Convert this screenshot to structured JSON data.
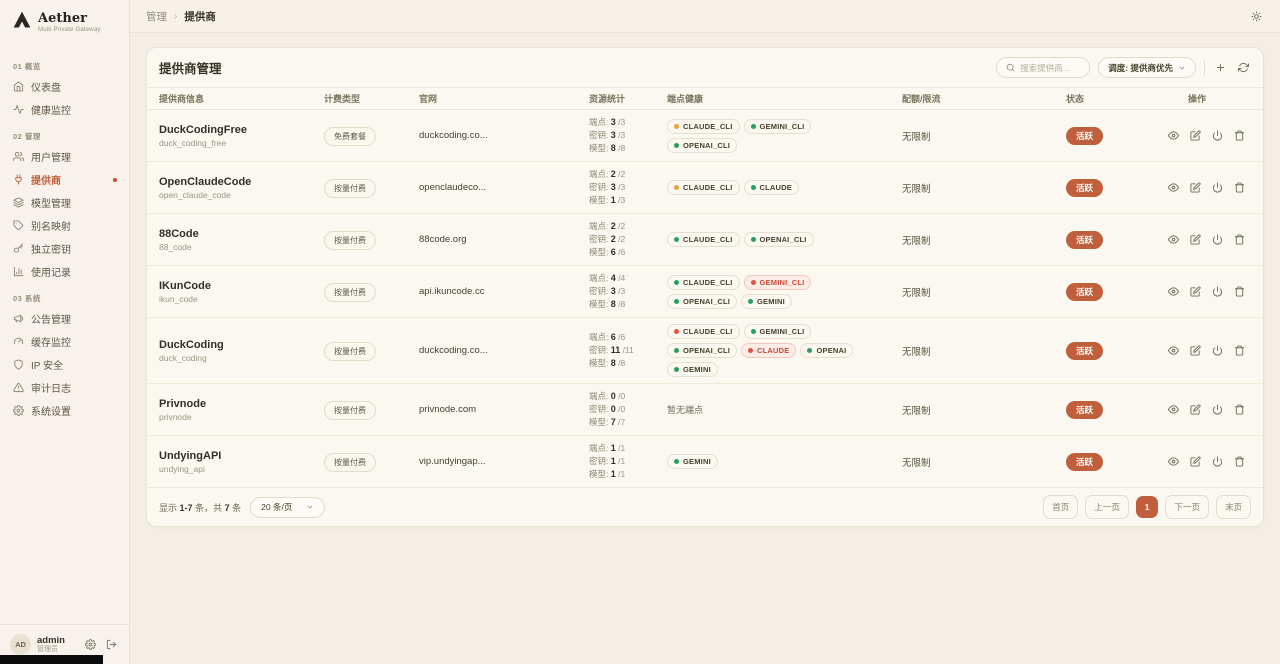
{
  "app": {
    "name": "Aether",
    "tagline": "Multi Private Gateway"
  },
  "breadcrumb": {
    "parent": "管理",
    "separator": "›",
    "current": "提供商"
  },
  "sidebar": {
    "sections": [
      {
        "label": "01 概览",
        "items": [
          {
            "icon": "dashboard-icon",
            "label": "仪表盘",
            "active": false
          },
          {
            "icon": "activity-icon",
            "label": "健康监控",
            "active": false
          }
        ]
      },
      {
        "label": "02 管理",
        "items": [
          {
            "icon": "users-icon",
            "label": "用户管理",
            "active": false
          },
          {
            "icon": "plug-icon",
            "label": "提供商",
            "active": true
          },
          {
            "icon": "layers-icon",
            "label": "模型管理",
            "active": false
          },
          {
            "icon": "tag-icon",
            "label": "别名映射",
            "active": false
          },
          {
            "icon": "key-icon",
            "label": "独立密钥",
            "active": false
          },
          {
            "icon": "chart-icon",
            "label": "使用记录",
            "active": false
          }
        ]
      },
      {
        "label": "03 系统",
        "items": [
          {
            "icon": "megaphone-icon",
            "label": "公告管理",
            "active": false
          },
          {
            "icon": "gauge-icon",
            "label": "缓存监控",
            "active": false
          },
          {
            "icon": "shield-icon",
            "label": "IP 安全",
            "active": false
          },
          {
            "icon": "alert-icon",
            "label": "审计日志",
            "active": false
          },
          {
            "icon": "gear-icon",
            "label": "系统设置",
            "active": false
          }
        ]
      }
    ],
    "user": {
      "initials": "AD",
      "name": "admin",
      "role": "管理员"
    }
  },
  "card": {
    "title": "提供商管理",
    "search_placeholder": "搜索提供商...",
    "sort_label": "调度: 提供商优先"
  },
  "table": {
    "columns": [
      "提供商信息",
      "计费类型",
      "官网",
      "资源统计",
      "端点健康",
      "配额/限流",
      "状态",
      "操作"
    ],
    "stat_labels": [
      "端点:",
      "密钥:",
      "模型:"
    ],
    "no_endpoints": "暂无端点",
    "quota_unlimited": "无限制",
    "status_active": "活跃",
    "rows": [
      {
        "name": "DuckCodingFree",
        "slug": "duck_coding_free",
        "billing": "免费套餐",
        "website": "duckcoding.co...",
        "stats": [
          [
            "3",
            "/3"
          ],
          [
            "3",
            "/3"
          ],
          [
            "8",
            "/8"
          ]
        ],
        "health": [
          {
            "label": "CLAUDE_CLI",
            "dot": "warn",
            "variant": "normal"
          },
          {
            "label": "GEMINI_CLI",
            "dot": "ok",
            "variant": "normal"
          },
          {
            "label": "OPENAI_CLI",
            "dot": "ok",
            "variant": "normal"
          }
        ],
        "quota": "无限制",
        "status": "活跃"
      },
      {
        "name": "OpenClaudeCode",
        "slug": "open_claude_code",
        "billing": "按量付费",
        "website": "openclaudeco...",
        "stats": [
          [
            "2",
            "/2"
          ],
          [
            "3",
            "/3"
          ],
          [
            "1",
            "/3"
          ]
        ],
        "health": [
          {
            "label": "CLAUDE_CLI",
            "dot": "warn",
            "variant": "normal"
          },
          {
            "label": "CLAUDE",
            "dot": "ok",
            "variant": "normal"
          }
        ],
        "quota": "无限制",
        "status": "活跃"
      },
      {
        "name": "88Code",
        "slug": "88_code",
        "billing": "按量付费",
        "website": "88code.org",
        "stats": [
          [
            "2",
            "/2"
          ],
          [
            "2",
            "/2"
          ],
          [
            "6",
            "/6"
          ]
        ],
        "health": [
          {
            "label": "CLAUDE_CLI",
            "dot": "ok",
            "variant": "normal"
          },
          {
            "label": "OPENAI_CLI",
            "dot": "ok",
            "variant": "normal"
          }
        ],
        "quota": "无限制",
        "status": "活跃"
      },
      {
        "name": "IKunCode",
        "slug": "ikun_code",
        "billing": "按量付费",
        "website": "api.ikuncode.cc",
        "stats": [
          [
            "4",
            "/4"
          ],
          [
            "3",
            "/3"
          ],
          [
            "8",
            "/8"
          ]
        ],
        "health": [
          {
            "label": "CLAUDE_CLI",
            "dot": "ok",
            "variant": "normal"
          },
          {
            "label": "GEMINI_CLI",
            "dot": "err",
            "variant": "error"
          },
          {
            "label": "OPENAI_CLI",
            "dot": "ok",
            "variant": "normal"
          },
          {
            "label": "GEMINI",
            "dot": "ok",
            "variant": "normal"
          }
        ],
        "quota": "无限制",
        "status": "活跃"
      },
      {
        "name": "DuckCoding",
        "slug": "duck_coding",
        "billing": "按量付费",
        "website": "duckcoding.co...",
        "stats": [
          [
            "6",
            "/6"
          ],
          [
            "11",
            "/11"
          ],
          [
            "8",
            "/8"
          ]
        ],
        "health": [
          {
            "label": "CLAUDE_CLI",
            "dot": "err",
            "variant": "normal"
          },
          {
            "label": "GEMINI_CLI",
            "dot": "ok",
            "variant": "normal"
          },
          {
            "label": "OPENAI_CLI",
            "dot": "ok",
            "variant": "normal"
          },
          {
            "label": "CLAUDE",
            "dot": "err",
            "variant": "error"
          },
          {
            "label": "OPENAI",
            "dot": "ok",
            "variant": "normal"
          },
          {
            "label": "GEMINI",
            "dot": "ok",
            "variant": "normal"
          }
        ],
        "quota": "无限制",
        "status": "活跃"
      },
      {
        "name": "Privnode",
        "slug": "privnode",
        "billing": "按量付费",
        "website": "privnode.com",
        "stats": [
          [
            "0",
            "/0"
          ],
          [
            "0",
            "/0"
          ],
          [
            "7",
            "/7"
          ]
        ],
        "health": [],
        "quota": "无限制",
        "status": "活跃"
      },
      {
        "name": "UndyingAPI",
        "slug": "undying_api",
        "billing": "按量付费",
        "website": "vip.undyingap...",
        "stats": [
          [
            "1",
            "/1"
          ],
          [
            "1",
            "/1"
          ],
          [
            "1",
            "/1"
          ]
        ],
        "health": [
          {
            "label": "GEMINI",
            "dot": "ok",
            "variant": "normal"
          }
        ],
        "quota": "无限制",
        "status": "活跃"
      }
    ]
  },
  "pagination": {
    "info_prefix": "显示",
    "info_range": "1-7",
    "info_mid": "条，共",
    "info_total": "7",
    "info_suffix": "条",
    "page_size": "20 条/页",
    "first": "首页",
    "prev": "上一页",
    "current": "1",
    "next": "下一页",
    "last": "末页"
  },
  "colors": {
    "accent": "#C05F3C",
    "ok": "#27A05F",
    "warn": "#EDA13C",
    "error": "#E25240"
  }
}
